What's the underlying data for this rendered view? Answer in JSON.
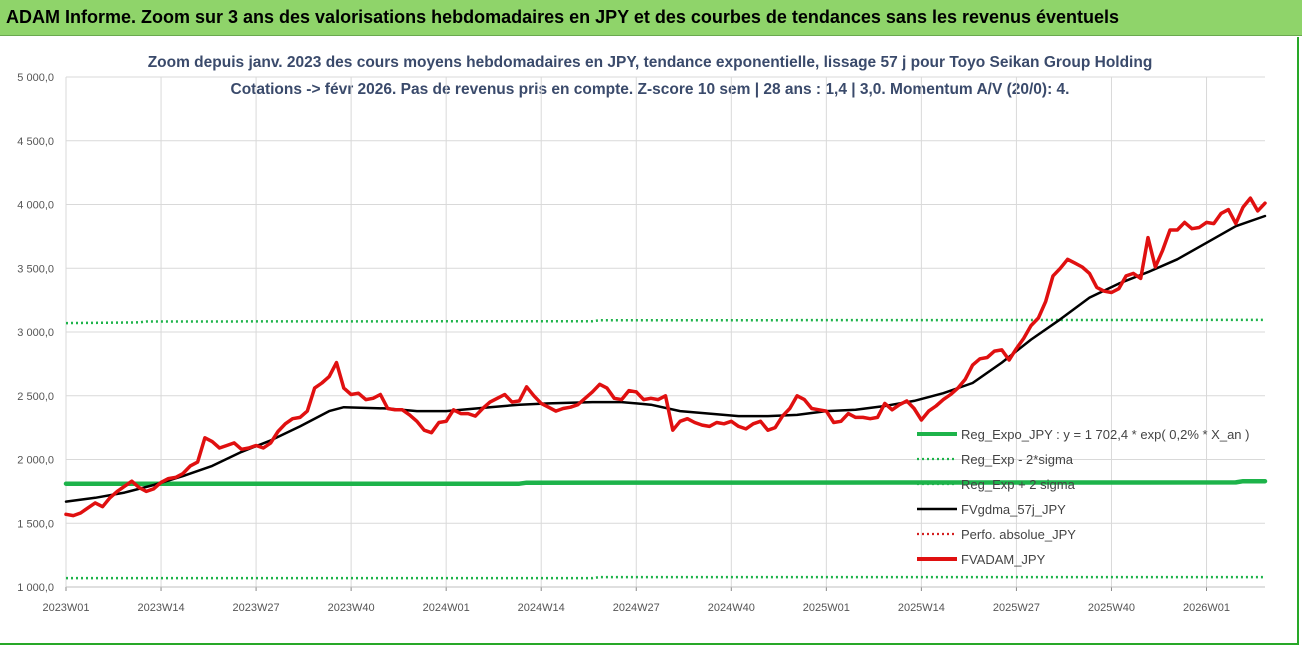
{
  "banner": {
    "title": "ADAM Informe. Zoom sur 3 ans des valorisations hebdomadaires en JPY et des courbes de tendances sans les revenus éventuels"
  },
  "chart_data": {
    "type": "line",
    "title_lines": [
      "Zoom depuis janv. 2023 des cours moyens hebdomadaires en JPY, tendance exponentielle, lissage 57 j pour Toyo Seikan Group Holding",
      "Cotations -> févr 2026.  Pas de revenus pris en compte. Z-score 10 sem | 28 ans : 1,4 | 3,0. Momentum A/V (20/0): 4."
    ],
    "y_ticks": [
      "1 000,0",
      "1 500,0",
      "2 000,0",
      "2 500,0",
      "3 000,0",
      "3 500,0",
      "4 000,0",
      "4 500,0",
      "5 000,0"
    ],
    "ylim": [
      1000,
      5000
    ],
    "x_ticks": [
      "2023W01",
      "2023W14",
      "2023W27",
      "2023W40",
      "2024W01",
      "2024W14",
      "2024W27",
      "2024W40",
      "2025W01",
      "2025W14",
      "2025W27",
      "2025W40",
      "2026W01"
    ],
    "x_tick_weeks": [
      0,
      13,
      26,
      39,
      52,
      65,
      78,
      91,
      104,
      117,
      130,
      143,
      156
    ],
    "xlim": [
      0,
      164
    ],
    "grid": true,
    "legend_position": "right",
    "series": [
      {
        "name": "Reg_Expo_JPY : y = 1 702,4 * exp( 0,2% *  X_an )",
        "color": "#1db34a",
        "style": "solid",
        "width": 4.5,
        "points": [
          [
            0,
            1810
          ],
          [
            62,
            1810
          ],
          [
            63,
            1818
          ],
          [
            160,
            1820
          ],
          [
            161,
            1830
          ],
          [
            164,
            1830
          ]
        ]
      },
      {
        "name": "Reg_Exp - 2*sigma",
        "color": "#1db34a",
        "style": "dotted",
        "width": 2.5,
        "points": [
          [
            0,
            3070
          ],
          [
            10,
            3075
          ],
          [
            11,
            3082
          ],
          [
            72,
            3085
          ],
          [
            73,
            3092
          ],
          [
            164,
            3095
          ]
        ]
      },
      {
        "name": "Reg_Exp + 2 sigma",
        "color": "#1db34a",
        "style": "dotted",
        "width": 2.5,
        "points": [
          [
            0,
            1070
          ],
          [
            72,
            1070
          ],
          [
            73,
            1078
          ],
          [
            164,
            1078
          ]
        ]
      },
      {
        "name": "FVgdma_57j_JPY",
        "color": "#000000",
        "style": "solid",
        "width": 2.5,
        "points": [
          [
            0,
            1670
          ],
          [
            4,
            1700
          ],
          [
            8,
            1740
          ],
          [
            12,
            1800
          ],
          [
            16,
            1870
          ],
          [
            20,
            1950
          ],
          [
            24,
            2060
          ],
          [
            28,
            2150
          ],
          [
            32,
            2260
          ],
          [
            36,
            2380
          ],
          [
            38,
            2410
          ],
          [
            44,
            2400
          ],
          [
            48,
            2380
          ],
          [
            52,
            2380
          ],
          [
            58,
            2410
          ],
          [
            62,
            2430
          ],
          [
            66,
            2440
          ],
          [
            72,
            2450
          ],
          [
            76,
            2450
          ],
          [
            80,
            2430
          ],
          [
            84,
            2380
          ],
          [
            88,
            2360
          ],
          [
            92,
            2340
          ],
          [
            96,
            2340
          ],
          [
            100,
            2350
          ],
          [
            104,
            2380
          ],
          [
            108,
            2390
          ],
          [
            112,
            2420
          ],
          [
            116,
            2460
          ],
          [
            120,
            2520
          ],
          [
            124,
            2600
          ],
          [
            128,
            2760
          ],
          [
            132,
            2940
          ],
          [
            136,
            3100
          ],
          [
            140,
            3270
          ],
          [
            144,
            3380
          ],
          [
            148,
            3470
          ],
          [
            152,
            3570
          ],
          [
            156,
            3700
          ],
          [
            160,
            3830
          ],
          [
            164,
            3910
          ]
        ]
      },
      {
        "name": "Perfo. absolue_JPY",
        "color": "#d42020",
        "style": "dotted",
        "width": 2,
        "points": []
      },
      {
        "name": "FVADAM_JPY",
        "color": "#e01010",
        "style": "solid",
        "width": 3.5,
        "points": [
          [
            0,
            1570
          ],
          [
            1,
            1560
          ],
          [
            2,
            1580
          ],
          [
            3,
            1620
          ],
          [
            4,
            1660
          ],
          [
            5,
            1630
          ],
          [
            6,
            1700
          ],
          [
            7,
            1750
          ],
          [
            8,
            1790
          ],
          [
            9,
            1830
          ],
          [
            10,
            1780
          ],
          [
            11,
            1750
          ],
          [
            12,
            1770
          ],
          [
            13,
            1820
          ],
          [
            14,
            1850
          ],
          [
            15,
            1860
          ],
          [
            16,
            1890
          ],
          [
            17,
            1950
          ],
          [
            18,
            1980
          ],
          [
            19,
            2170
          ],
          [
            20,
            2140
          ],
          [
            21,
            2090
          ],
          [
            22,
            2110
          ],
          [
            23,
            2130
          ],
          [
            24,
            2080
          ],
          [
            25,
            2090
          ],
          [
            26,
            2110
          ],
          [
            27,
            2090
          ],
          [
            28,
            2130
          ],
          [
            29,
            2220
          ],
          [
            30,
            2280
          ],
          [
            31,
            2320
          ],
          [
            32,
            2330
          ],
          [
            33,
            2380
          ],
          [
            34,
            2560
          ],
          [
            35,
            2600
          ],
          [
            36,
            2650
          ],
          [
            37,
            2760
          ],
          [
            38,
            2560
          ],
          [
            39,
            2510
          ],
          [
            40,
            2520
          ],
          [
            41,
            2470
          ],
          [
            42,
            2480
          ],
          [
            43,
            2510
          ],
          [
            44,
            2400
          ],
          [
            45,
            2390
          ],
          [
            46,
            2390
          ],
          [
            47,
            2350
          ],
          [
            48,
            2300
          ],
          [
            49,
            2230
          ],
          [
            50,
            2210
          ],
          [
            51,
            2290
          ],
          [
            52,
            2300
          ],
          [
            53,
            2390
          ],
          [
            54,
            2360
          ],
          [
            55,
            2360
          ],
          [
            56,
            2340
          ],
          [
            57,
            2400
          ],
          [
            58,
            2450
          ],
          [
            59,
            2480
          ],
          [
            60,
            2510
          ],
          [
            61,
            2450
          ],
          [
            62,
            2460
          ],
          [
            63,
            2570
          ],
          [
            64,
            2500
          ],
          [
            65,
            2440
          ],
          [
            66,
            2410
          ],
          [
            67,
            2380
          ],
          [
            68,
            2400
          ],
          [
            69,
            2410
          ],
          [
            70,
            2430
          ],
          [
            71,
            2480
          ],
          [
            72,
            2530
          ],
          [
            73,
            2590
          ],
          [
            74,
            2560
          ],
          [
            75,
            2480
          ],
          [
            76,
            2470
          ],
          [
            77,
            2540
          ],
          [
            78,
            2530
          ],
          [
            79,
            2470
          ],
          [
            80,
            2480
          ],
          [
            81,
            2470
          ],
          [
            82,
            2500
          ],
          [
            83,
            2230
          ],
          [
            84,
            2300
          ],
          [
            85,
            2320
          ],
          [
            86,
            2290
          ],
          [
            87,
            2270
          ],
          [
            88,
            2260
          ],
          [
            89,
            2290
          ],
          [
            90,
            2280
          ],
          [
            91,
            2300
          ],
          [
            92,
            2260
          ],
          [
            93,
            2240
          ],
          [
            94,
            2280
          ],
          [
            95,
            2300
          ],
          [
            96,
            2230
          ],
          [
            97,
            2250
          ],
          [
            98,
            2340
          ],
          [
            99,
            2400
          ],
          [
            100,
            2500
          ],
          [
            101,
            2470
          ],
          [
            102,
            2400
          ],
          [
            103,
            2390
          ],
          [
            104,
            2380
          ],
          [
            105,
            2290
          ],
          [
            106,
            2300
          ],
          [
            107,
            2360
          ],
          [
            108,
            2330
          ],
          [
            109,
            2330
          ],
          [
            110,
            2320
          ],
          [
            111,
            2330
          ],
          [
            112,
            2440
          ],
          [
            113,
            2390
          ],
          [
            114,
            2430
          ],
          [
            115,
            2460
          ],
          [
            116,
            2400
          ],
          [
            117,
            2310
          ],
          [
            118,
            2380
          ],
          [
            119,
            2420
          ],
          [
            120,
            2470
          ],
          [
            121,
            2510
          ],
          [
            122,
            2560
          ],
          [
            123,
            2630
          ],
          [
            124,
            2740
          ],
          [
            125,
            2790
          ],
          [
            126,
            2800
          ],
          [
            127,
            2850
          ],
          [
            128,
            2860
          ],
          [
            129,
            2780
          ],
          [
            130,
            2870
          ],
          [
            131,
            2950
          ],
          [
            132,
            3050
          ],
          [
            133,
            3110
          ],
          [
            134,
            3240
          ],
          [
            135,
            3440
          ],
          [
            136,
            3500
          ],
          [
            137,
            3570
          ],
          [
            138,
            3540
          ],
          [
            139,
            3510
          ],
          [
            140,
            3460
          ],
          [
            141,
            3350
          ],
          [
            142,
            3320
          ],
          [
            143,
            3310
          ],
          [
            144,
            3340
          ],
          [
            145,
            3440
          ],
          [
            146,
            3460
          ],
          [
            147,
            3420
          ],
          [
            148,
            3740
          ],
          [
            149,
            3510
          ],
          [
            150,
            3640
          ],
          [
            151,
            3800
          ],
          [
            152,
            3800
          ],
          [
            153,
            3860
          ],
          [
            154,
            3810
          ],
          [
            155,
            3820
          ],
          [
            156,
            3860
          ],
          [
            157,
            3850
          ],
          [
            158,
            3930
          ],
          [
            159,
            3960
          ],
          [
            160,
            3850
          ],
          [
            161,
            3980
          ],
          [
            162,
            4050
          ],
          [
            163,
            3950
          ],
          [
            164,
            4010
          ]
        ]
      }
    ]
  }
}
